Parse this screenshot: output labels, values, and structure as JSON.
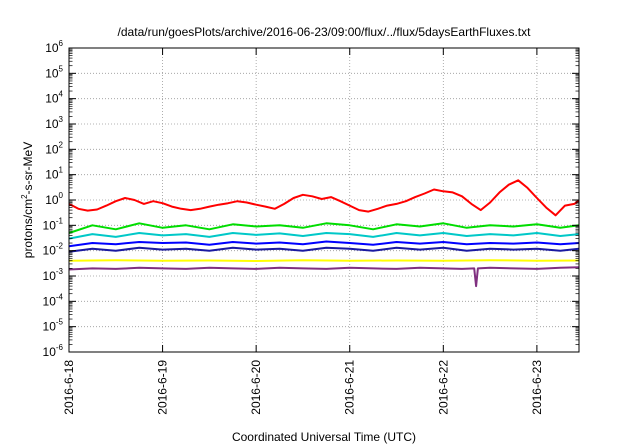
{
  "chart_data": {
    "type": "line",
    "title": "/data/run/goesPlots/archive/2016-06-23/09:00/flux/../flux/5daysEarthFluxes.txt",
    "xlabel": "Coordinated Universal Time (UTC)",
    "ylabel_prefix": "protons/cm",
    "ylabel_sup": "2",
    "ylabel_suffix": "-s-sr-MeV",
    "x_tick_labels": [
      "2016-6-18",
      "2016-6-19",
      "2016-6-20",
      "2016-6-21",
      "2016-6-22",
      "2016-6-23"
    ],
    "x_range_days": [
      0,
      5.45
    ],
    "y_scale": "log",
    "y_tick_exponents": [
      -6,
      -5,
      -4,
      -3,
      -2,
      -1,
      0,
      1,
      2,
      3,
      4,
      5,
      6
    ],
    "y_tick_base": "10",
    "ylim": [
      1e-06,
      1000000.0
    ],
    "grid": true,
    "legend": "none",
    "series": [
      {
        "color": "#ff0000",
        "x": [
          0,
          0.1,
          0.2,
          0.3,
          0.4,
          0.5,
          0.6,
          0.7,
          0.8,
          0.9,
          1.0,
          1.1,
          1.2,
          1.3,
          1.4,
          1.5,
          1.6,
          1.7,
          1.8,
          1.9,
          2.0,
          2.1,
          2.2,
          2.3,
          2.4,
          2.5,
          2.6,
          2.7,
          2.8,
          2.9,
          3.0,
          3.1,
          3.2,
          3.3,
          3.4,
          3.5,
          3.6,
          3.7,
          3.8,
          3.9,
          4.0,
          4.1,
          4.2,
          4.3,
          4.4,
          4.5,
          4.6,
          4.7,
          4.8,
          4.9,
          5.0,
          5.1,
          5.2,
          5.3,
          5.4,
          5.45
        ],
        "y": [
          0.7,
          0.45,
          0.38,
          0.42,
          0.6,
          0.9,
          1.2,
          1.0,
          0.7,
          0.9,
          0.75,
          0.55,
          0.45,
          0.4,
          0.45,
          0.55,
          0.65,
          0.75,
          0.9,
          0.8,
          0.65,
          0.55,
          0.45,
          0.7,
          1.2,
          1.6,
          1.4,
          1.1,
          1.3,
          0.9,
          0.6,
          0.4,
          0.35,
          0.45,
          0.6,
          0.7,
          0.9,
          1.3,
          1.8,
          2.6,
          2.2,
          2.0,
          1.4,
          0.7,
          0.4,
          0.8,
          2.0,
          4.0,
          6.0,
          3.0,
          1.2,
          0.5,
          0.25,
          0.6,
          0.7,
          0.95
        ]
      },
      {
        "color": "#00dd00",
        "x": [
          0,
          0.25,
          0.5,
          0.75,
          1.0,
          1.25,
          1.5,
          1.75,
          2.0,
          2.25,
          2.5,
          2.75,
          3.0,
          3.25,
          3.5,
          3.75,
          4.0,
          4.25,
          4.5,
          4.75,
          5.0,
          5.25,
          5.45
        ],
        "y": [
          0.05,
          0.1,
          0.07,
          0.12,
          0.08,
          0.1,
          0.07,
          0.11,
          0.09,
          0.1,
          0.08,
          0.12,
          0.1,
          0.07,
          0.11,
          0.09,
          0.12,
          0.08,
          0.1,
          0.09,
          0.11,
          0.08,
          0.1
        ]
      },
      {
        "color": "#00c8c8",
        "x": [
          0,
          0.25,
          0.5,
          0.75,
          1.0,
          1.25,
          1.5,
          1.75,
          2.0,
          2.25,
          2.5,
          2.75,
          3.0,
          3.25,
          3.5,
          3.75,
          4.0,
          4.25,
          4.5,
          4.75,
          5.0,
          5.25,
          5.45
        ],
        "y": [
          0.03,
          0.045,
          0.035,
          0.05,
          0.04,
          0.045,
          0.035,
          0.05,
          0.042,
          0.048,
          0.038,
          0.05,
          0.045,
          0.035,
          0.05,
          0.04,
          0.05,
          0.038,
          0.045,
          0.04,
          0.05,
          0.038,
          0.045
        ]
      },
      {
        "color": "#0000ff",
        "x": [
          0,
          0.25,
          0.5,
          0.75,
          1.0,
          1.25,
          1.5,
          1.75,
          2.0,
          2.25,
          2.5,
          2.75,
          3.0,
          3.25,
          3.5,
          3.75,
          4.0,
          4.25,
          4.5,
          4.75,
          5.0,
          5.25,
          5.45
        ],
        "y": [
          0.015,
          0.02,
          0.018,
          0.022,
          0.02,
          0.021,
          0.017,
          0.022,
          0.019,
          0.021,
          0.018,
          0.023,
          0.02,
          0.017,
          0.022,
          0.019,
          0.022,
          0.018,
          0.02,
          0.019,
          0.021,
          0.018,
          0.02
        ]
      },
      {
        "color": "#1a1aa0",
        "x": [
          0,
          0.25,
          0.5,
          0.75,
          1.0,
          1.25,
          1.5,
          1.75,
          2.0,
          2.25,
          2.5,
          2.75,
          3.0,
          3.25,
          3.5,
          3.75,
          4.0,
          4.25,
          4.5,
          4.75,
          5.0,
          5.25,
          5.45
        ],
        "y": [
          0.009,
          0.012,
          0.01,
          0.013,
          0.011,
          0.012,
          0.01,
          0.013,
          0.011,
          0.012,
          0.01,
          0.013,
          0.012,
          0.01,
          0.013,
          0.011,
          0.013,
          0.01,
          0.012,
          0.011,
          0.012,
          0.01,
          0.012
        ]
      },
      {
        "color": "#ffff00",
        "x": [
          0,
          0.5,
          1.0,
          1.5,
          2.0,
          2.5,
          3.0,
          3.5,
          4.0,
          4.5,
          5.0,
          5.45
        ],
        "y": [
          0.004,
          0.0042,
          0.004,
          0.0041,
          0.0039,
          0.0042,
          0.004,
          0.0041,
          0.004,
          0.0042,
          0.004,
          0.0041
        ]
      },
      {
        "color": "#803080",
        "x": [
          0,
          0.25,
          0.5,
          0.75,
          1.0,
          1.25,
          1.5,
          1.75,
          2.0,
          2.25,
          2.5,
          2.75,
          3.0,
          3.25,
          3.5,
          3.75,
          4.0,
          4.2,
          4.33,
          4.35,
          4.37,
          4.5,
          4.75,
          5.0,
          5.25,
          5.45
        ],
        "y": [
          0.0018,
          0.002,
          0.0019,
          0.0021,
          0.002,
          0.0019,
          0.0021,
          0.002,
          0.0019,
          0.0021,
          0.002,
          0.0019,
          0.0021,
          0.002,
          0.0019,
          0.0021,
          0.002,
          0.0019,
          0.002,
          0.0004,
          0.002,
          0.0021,
          0.002,
          0.0019,
          0.0021,
          0.0022
        ]
      }
    ]
  }
}
